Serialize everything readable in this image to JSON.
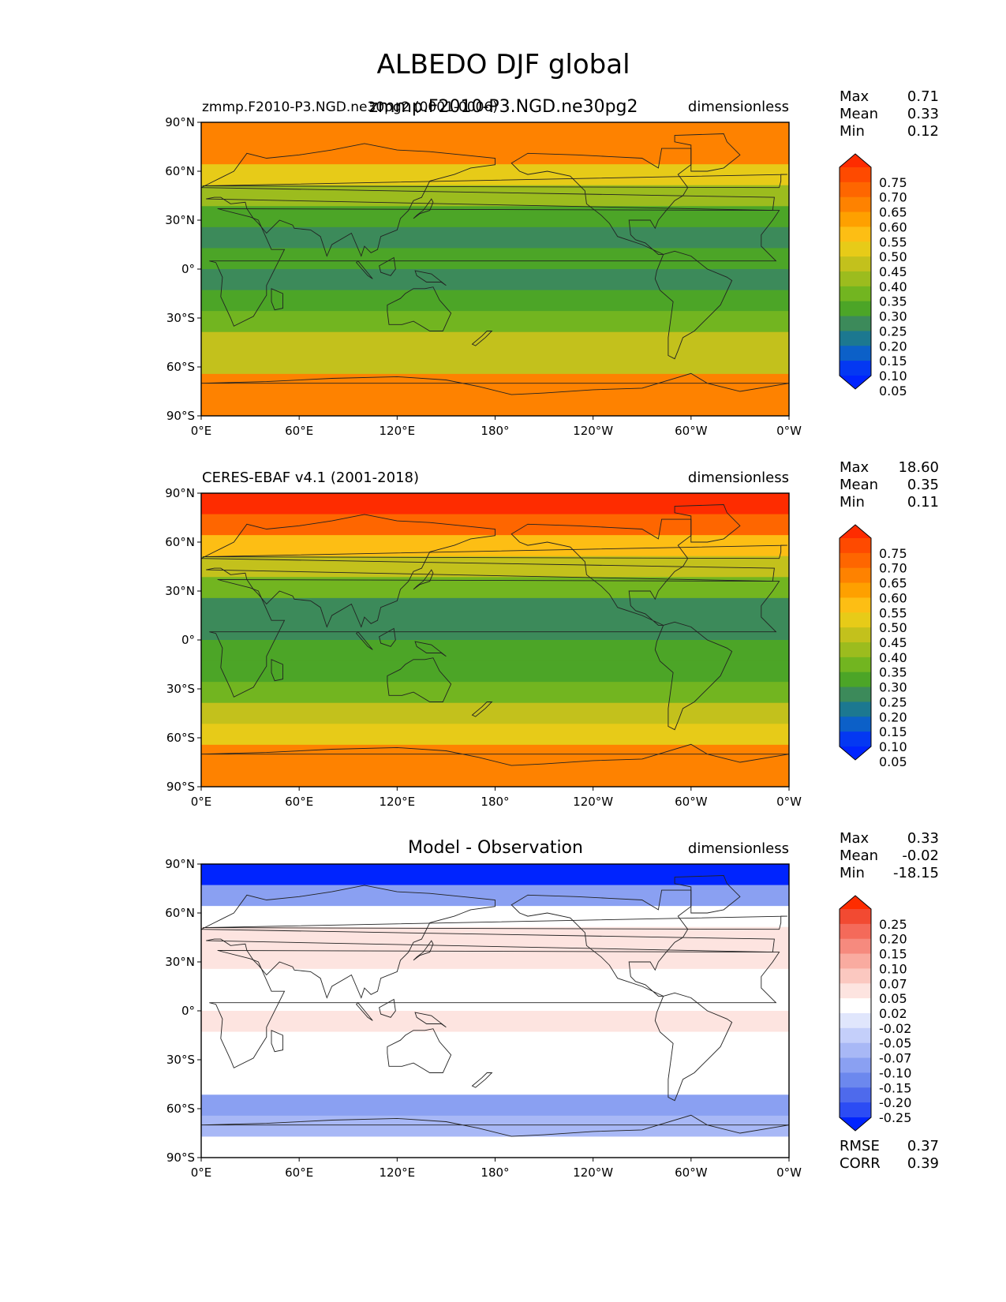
{
  "chart_data": {
    "type": "heatmap",
    "title": "ALBEDO DJF global",
    "subtitle": "zmmp.F2010-P3.NGD.ne30pg2",
    "x_ticks": [
      "0°E",
      "60°E",
      "120°E",
      "180°",
      "120°W",
      "60°W",
      "0°W"
    ],
    "y_ticks": [
      "90°N",
      "60°N",
      "30°N",
      "0°",
      "30°S",
      "60°S",
      "90°S"
    ],
    "xlim": [
      0,
      360
    ],
    "ylim": [
      -90,
      90
    ],
    "panels": [
      {
        "id": "model",
        "title_left": "zmmp.F2010-P3.NGD.ne30pg2 (0001-0006)",
        "title_center": "",
        "units": "dimensionless",
        "stats": [
          {
            "label": "Max",
            "value": "0.71"
          },
          {
            "label": "Mean",
            "value": "0.33"
          },
          {
            "label": "Min",
            "value": "0.12"
          }
        ],
        "colorbar_levels": [
          "0.75",
          "0.70",
          "0.65",
          "0.60",
          "0.55",
          "0.50",
          "0.45",
          "0.40",
          "0.35",
          "0.30",
          "0.25",
          "0.20",
          "0.15",
          "0.10",
          "0.05"
        ],
        "colorbar_colors": [
          "#fe2c00",
          "#fe4a00",
          "#fe6600",
          "#fe8200",
          "#fea000",
          "#fdbe14",
          "#e7cb18",
          "#c3c11c",
          "#9cbc1e",
          "#72b520",
          "#4ca527",
          "#3c8a5a",
          "#1c7890",
          "#0c60c8",
          "#0438f2",
          "#0024fe"
        ],
        "band_values": [
          0.62,
          0.62,
          0.46,
          0.38,
          0.28,
          0.24,
          0.26,
          0.22,
          0.25,
          0.33,
          0.4,
          0.4,
          0.62,
          0.64
        ]
      },
      {
        "id": "obs",
        "title_left": "CERES-EBAF v4.1 (2001-2018)",
        "title_center": "",
        "units": "dimensionless",
        "stats": [
          {
            "label": "Max",
            "value": "18.60"
          },
          {
            "label": "Mean",
            "value": "0.35"
          },
          {
            "label": "Min",
            "value": "0.11"
          }
        ],
        "colorbar_levels": [
          "0.75",
          "0.70",
          "0.65",
          "0.60",
          "0.55",
          "0.50",
          "0.45",
          "0.40",
          "0.35",
          "0.30",
          "0.25",
          "0.20",
          "0.15",
          "0.10",
          "0.05"
        ],
        "colorbar_colors": [
          "#fe2c00",
          "#fe4a00",
          "#fe6600",
          "#fe8200",
          "#fea000",
          "#fdbe14",
          "#e7cb18",
          "#c3c11c",
          "#9cbc1e",
          "#72b520",
          "#4ca527",
          "#3c8a5a",
          "#1c7890",
          "#0c60c8",
          "#0438f2",
          "#0024fe"
        ],
        "band_values": [
          0.78,
          0.68,
          0.52,
          0.4,
          0.3,
          0.22,
          0.24,
          0.25,
          0.28,
          0.33,
          0.42,
          0.48,
          0.62,
          0.64
        ]
      },
      {
        "id": "diff",
        "title_left": "",
        "title_center": "Model - Observation",
        "units": "dimensionless",
        "stats": [
          {
            "label": "Max",
            "value": "0.33"
          },
          {
            "label": "Mean",
            "value": "-0.02"
          },
          {
            "label": "Min",
            "value": "-18.15"
          }
        ],
        "colorbar_levels": [
          "0.25",
          "0.20",
          "0.15",
          "0.10",
          "0.07",
          "0.05",
          "0.02",
          "-0.02",
          "-0.05",
          "-0.07",
          "-0.10",
          "-0.15",
          "-0.20",
          "-0.25"
        ],
        "colorbar_colors": [
          "#fe2c00",
          "#f24a32",
          "#f46a5a",
          "#f68a7e",
          "#f9aba0",
          "#fbc8c0",
          "#fde4e0",
          "#ffffff",
          "#e0e6fc",
          "#c4cffa",
          "#a8b8f6",
          "#8aa0f2",
          "#6c88ee",
          "#4e6aec",
          "#2c4cf4",
          "#0024fe"
        ],
        "band_values": [
          -0.4,
          -0.12,
          -0.01,
          0.02,
          0.04,
          -0.01,
          -0.01,
          0.02,
          0.01,
          -0.01,
          0.01,
          -0.12,
          -0.1,
          0.0
        ],
        "extra_stats": [
          {
            "label": "RMSE",
            "value": "0.37"
          },
          {
            "label": "CORR",
            "value": "0.39"
          }
        ]
      }
    ]
  }
}
